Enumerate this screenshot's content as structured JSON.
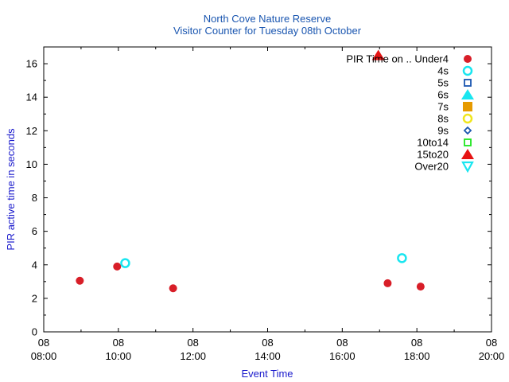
{
  "chart_data": {
    "type": "scatter",
    "title": "North Cove Nature Reserve",
    "subtitle": "Visitor Counter for Tuesday 08th October",
    "xlabel": "Event Time",
    "ylabel": "PIR active time in seconds",
    "xlim": [
      "08:00",
      "20:00"
    ],
    "ylim": [
      0,
      17
    ],
    "x_ticks": [
      {
        "value": "08:00",
        "line1": "08",
        "line2": "08:00"
      },
      {
        "value": "10:00",
        "line1": "08",
        "line2": "10:00"
      },
      {
        "value": "12:00",
        "line1": "08",
        "line2": "12:00"
      },
      {
        "value": "14:00",
        "line1": "08",
        "line2": "14:00"
      },
      {
        "value": "16:00",
        "line1": "08",
        "line2": "16:00"
      },
      {
        "value": "18:00",
        "line1": "08",
        "line2": "18:00"
      },
      {
        "value": "20:00",
        "line1": "08",
        "line2": "20:00"
      }
    ],
    "y_ticks": [
      0,
      2,
      4,
      6,
      8,
      10,
      12,
      14,
      16
    ],
    "legend_title": "PIR Time on ..",
    "legend_position": "top-right",
    "grid": false,
    "series": [
      {
        "name": "Under4",
        "marker": "filled-circle",
        "color": "#d81e28",
        "points": [
          {
            "x": "08:58",
            "y": 3.05
          },
          {
            "x": "09:58",
            "y": 3.9
          },
          {
            "x": "11:28",
            "y": 2.6
          },
          {
            "x": "17:13",
            "y": 2.9
          },
          {
            "x": "18:06",
            "y": 2.7
          }
        ]
      },
      {
        "name": "4s",
        "marker": "open-circle",
        "color": "#19e6f0",
        "points": [
          {
            "x": "10:11",
            "y": 4.1
          },
          {
            "x": "17:36",
            "y": 4.4
          }
        ]
      },
      {
        "name": "5s",
        "marker": "open-square",
        "color": "#1a56b0",
        "points": []
      },
      {
        "name": "6s",
        "marker": "filled-triangle",
        "color": "#19e6f0",
        "points": []
      },
      {
        "name": "7s",
        "marker": "filled-square",
        "color": "#e69a00",
        "points": []
      },
      {
        "name": "8s",
        "marker": "open-circle",
        "color": "#f0e61e",
        "points": []
      },
      {
        "name": "9s",
        "marker": "open-diamond",
        "color": "#1a56b0",
        "points": []
      },
      {
        "name": "10to14",
        "marker": "open-square",
        "color": "#1ee61e",
        "points": []
      },
      {
        "name": "15to20",
        "marker": "filled-triangle",
        "color": "#e61414",
        "points": [
          {
            "x": "16:58",
            "y": 16.5
          }
        ]
      },
      {
        "name": "Over20",
        "marker": "open-triangle-down",
        "color": "#19e6f0",
        "points": []
      }
    ]
  }
}
